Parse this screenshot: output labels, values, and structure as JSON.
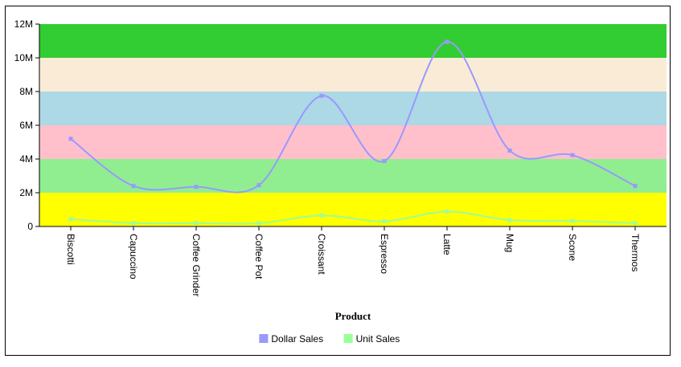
{
  "chart_data": {
    "type": "line",
    "title": "",
    "xlabel": "Product",
    "ylabel": "",
    "categories": [
      "Biscotti",
      "Capuccino",
      "Coffee Grinder",
      "Coffee Pot",
      "Croissant",
      "Espresso",
      "Latte",
      "Mug",
      "Scone",
      "Thermos"
    ],
    "series": [
      {
        "name": "Dollar Sales",
        "color": "#9999ff",
        "values": [
          5200000,
          2400000,
          2350000,
          2450000,
          7750000,
          3880000,
          10950000,
          4500000,
          4230000,
          2400000
        ]
      },
      {
        "name": "Unit Sales",
        "color": "#99ff99",
        "values": [
          430000,
          200000,
          200000,
          190000,
          650000,
          310000,
          880000,
          380000,
          330000,
          200000
        ]
      }
    ],
    "ylim": [
      0,
      12000000
    ],
    "yticks": [
      {
        "value": 0,
        "label": "0"
      },
      {
        "value": 2000000,
        "label": "2M"
      },
      {
        "value": 4000000,
        "label": "4M"
      },
      {
        "value": 6000000,
        "label": "6M"
      },
      {
        "value": 8000000,
        "label": "8M"
      },
      {
        "value": 10000000,
        "label": "10M"
      },
      {
        "value": 12000000,
        "label": "12M"
      }
    ],
    "bands": [
      {
        "from": 0,
        "to": 2000000,
        "color": "#ffff00"
      },
      {
        "from": 2000000,
        "to": 4000000,
        "color": "#90ee90"
      },
      {
        "from": 4000000,
        "to": 6000000,
        "color": "#ffc0cb"
      },
      {
        "from": 6000000,
        "to": 8000000,
        "color": "#add8e6"
      },
      {
        "from": 8000000,
        "to": 10000000,
        "color": "#faebd7"
      },
      {
        "from": 10000000,
        "to": 12000000,
        "color": "#32cd32"
      }
    ],
    "grid": false,
    "legend_position": "bottom-center"
  }
}
